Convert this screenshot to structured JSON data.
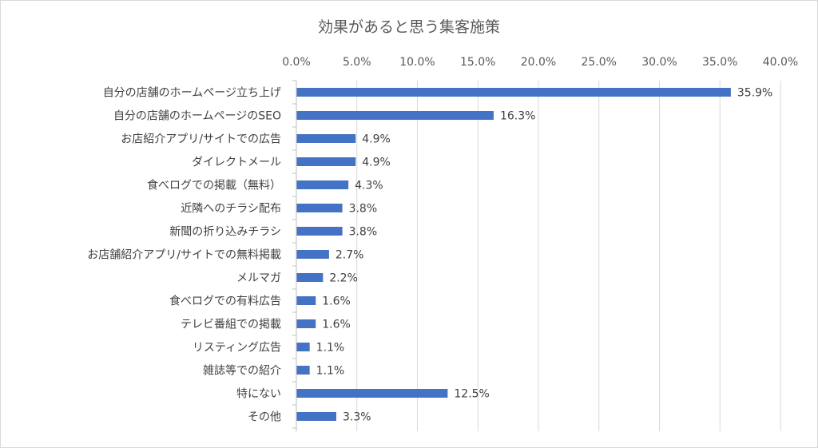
{
  "chart_data": {
    "type": "bar",
    "orientation": "horizontal",
    "title": "効果があると思う集客施策",
    "xlim": [
      0,
      40
    ],
    "x_ticks": [
      "0.0%",
      "5.0%",
      "10.0%",
      "15.0%",
      "20.0%",
      "25.0%",
      "30.0%",
      "35.0%",
      "40.0%"
    ],
    "x_axis_position": "top",
    "grid": true,
    "legend": "none",
    "bar_color": "#4472c4",
    "categories": [
      "自分の店舗のホームページ立ち上げ",
      "自分の店舗のホームページのSEO",
      "お店紹介アプリ/サイトでの広告",
      "ダイレクトメール",
      "食べログでの掲載（無料）",
      "近隣へのチラシ配布",
      "新聞の折り込みチラシ",
      "お店舗紹介アプリ/サイトでの無料掲載",
      "メルマガ",
      "食べログでの有料広告",
      "テレビ番組での掲載",
      "リスティング広告",
      "雑誌等での紹介",
      "特にない",
      "その他"
    ],
    "values": [
      35.9,
      16.3,
      4.9,
      4.9,
      4.3,
      3.8,
      3.8,
      2.7,
      2.2,
      1.6,
      1.6,
      1.1,
      1.1,
      12.5,
      3.3
    ],
    "value_labels": [
      "35.9%",
      "16.3%",
      "4.9%",
      "4.9%",
      "4.3%",
      "3.8%",
      "3.8%",
      "2.7%",
      "2.2%",
      "1.6%",
      "1.6%",
      "1.1%",
      "1.1%",
      "12.5%",
      "3.3%"
    ]
  }
}
